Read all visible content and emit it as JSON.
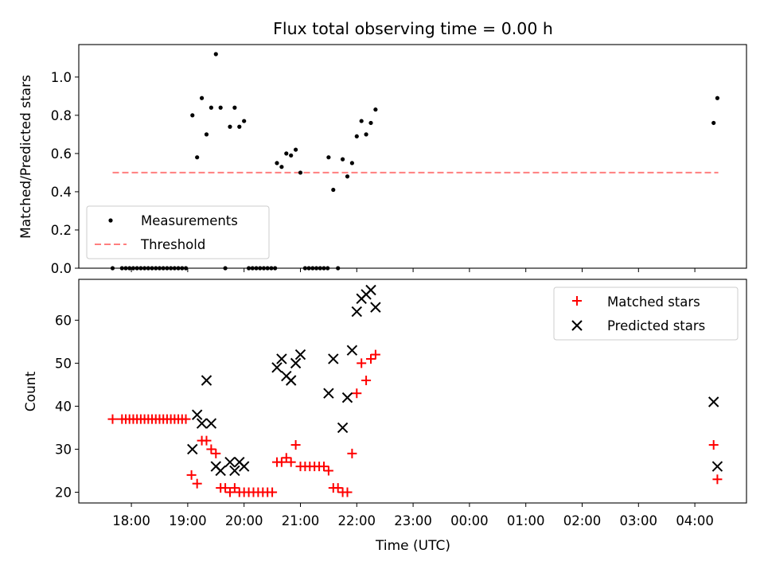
{
  "chart_data": [
    {
      "type": "scatter",
      "title": "Flux total observing time = 0.00 h",
      "ylabel": "Matched/Predicted stars",
      "xlim": [
        "17:04",
        "04:55"
      ],
      "ylim": [
        0,
        1.17
      ],
      "yticks": [
        "0.0",
        "0.2",
        "0.4",
        "0.6",
        "0.8",
        "1.0"
      ],
      "legend_position": "lower-left",
      "series": [
        {
          "name": "Measurements",
          "marker": "dot",
          "color": "#000000",
          "points": [
            [
              "17:40",
              0
            ],
            [
              "17:50",
              0
            ],
            [
              "17:54",
              0
            ],
            [
              "17:58",
              0
            ],
            [
              "18:02",
              0
            ],
            [
              "18:06",
              0
            ],
            [
              "18:10",
              0
            ],
            [
              "18:14",
              0
            ],
            [
              "18:18",
              0
            ],
            [
              "18:22",
              0
            ],
            [
              "18:26",
              0
            ],
            [
              "18:30",
              0
            ],
            [
              "18:34",
              0
            ],
            [
              "18:38",
              0
            ],
            [
              "18:42",
              0
            ],
            [
              "18:46",
              0
            ],
            [
              "18:50",
              0
            ],
            [
              "18:54",
              0
            ],
            [
              "18:58",
              0
            ],
            [
              "19:05",
              0.8
            ],
            [
              "19:10",
              0.58
            ],
            [
              "19:15",
              0.89
            ],
            [
              "19:20",
              0.7
            ],
            [
              "19:25",
              0.84
            ],
            [
              "19:30",
              1.12
            ],
            [
              "19:35",
              0.84
            ],
            [
              "19:40",
              0
            ],
            [
              "19:45",
              0.74
            ],
            [
              "19:50",
              0.84
            ],
            [
              "19:55",
              0.74
            ],
            [
              "20:00",
              0.77
            ],
            [
              "20:05",
              0
            ],
            [
              "20:09",
              0
            ],
            [
              "20:13",
              0
            ],
            [
              "20:17",
              0
            ],
            [
              "20:21",
              0
            ],
            [
              "20:25",
              0
            ],
            [
              "20:29",
              0
            ],
            [
              "20:33",
              0
            ],
            [
              "20:35",
              0.55
            ],
            [
              "20:40",
              0.53
            ],
            [
              "20:45",
              0.6
            ],
            [
              "20:50",
              0.59
            ],
            [
              "20:55",
              0.62
            ],
            [
              "21:00",
              0.5
            ],
            [
              "21:05",
              0
            ],
            [
              "21:09",
              0
            ],
            [
              "21:13",
              0
            ],
            [
              "21:17",
              0
            ],
            [
              "21:21",
              0
            ],
            [
              "21:25",
              0
            ],
            [
              "21:29",
              0
            ],
            [
              "21:30",
              0.58
            ],
            [
              "21:35",
              0.41
            ],
            [
              "21:40",
              0
            ],
            [
              "21:45",
              0.57
            ],
            [
              "21:50",
              0.48
            ],
            [
              "21:55",
              0.55
            ],
            [
              "22:00",
              0.69
            ],
            [
              "22:05",
              0.77
            ],
            [
              "22:10",
              0.7
            ],
            [
              "22:15",
              0.76
            ],
            [
              "22:20",
              0.83
            ],
            [
              "04:20",
              0.76
            ],
            [
              "04:24",
              0.89
            ]
          ]
        },
        {
          "name": "Threshold",
          "style": "dashed",
          "color": "#ff7f7f",
          "points": [
            [
              "17:40",
              0.5
            ],
            [
              "04:25",
              0.5
            ]
          ]
        }
      ]
    },
    {
      "type": "scatter",
      "ylabel": "Count",
      "xlabel": "Time (UTC)",
      "xlim": [
        "17:04",
        "04:55"
      ],
      "ylim": [
        17.5,
        69.5
      ],
      "yticks": [
        "20",
        "30",
        "40",
        "50",
        "60"
      ],
      "xticks": [
        "18:00",
        "19:00",
        "20:00",
        "21:00",
        "22:00",
        "23:00",
        "00:00",
        "01:00",
        "02:00",
        "03:00",
        "04:00"
      ],
      "legend_position": "upper-right",
      "series": [
        {
          "name": "Matched stars",
          "marker": "plus",
          "color": "#ff0000",
          "points": [
            [
              "17:40",
              37
            ],
            [
              "17:50",
              37
            ],
            [
              "17:54",
              37
            ],
            [
              "17:58",
              37
            ],
            [
              "18:02",
              37
            ],
            [
              "18:06",
              37
            ],
            [
              "18:10",
              37
            ],
            [
              "18:14",
              37
            ],
            [
              "18:18",
              37
            ],
            [
              "18:22",
              37
            ],
            [
              "18:26",
              37
            ],
            [
              "18:30",
              37
            ],
            [
              "18:34",
              37
            ],
            [
              "18:38",
              37
            ],
            [
              "18:42",
              37
            ],
            [
              "18:46",
              37
            ],
            [
              "18:50",
              37
            ],
            [
              "18:54",
              37
            ],
            [
              "18:58",
              37
            ],
            [
              "19:04",
              24
            ],
            [
              "19:10",
              22
            ],
            [
              "19:15",
              32
            ],
            [
              "19:20",
              32
            ],
            [
              "19:25",
              30
            ],
            [
              "19:30",
              29
            ],
            [
              "19:35",
              21
            ],
            [
              "19:40",
              21
            ],
            [
              "19:45",
              20
            ],
            [
              "19:50",
              21
            ],
            [
              "19:55",
              20
            ],
            [
              "20:00",
              20
            ],
            [
              "20:05",
              20
            ],
            [
              "20:10",
              20
            ],
            [
              "20:15",
              20
            ],
            [
              "20:20",
              20
            ],
            [
              "20:25",
              20
            ],
            [
              "20:30",
              20
            ],
            [
              "20:35",
              27
            ],
            [
              "20:40",
              27
            ],
            [
              "20:45",
              28
            ],
            [
              "20:50",
              27
            ],
            [
              "20:55",
              31
            ],
            [
              "21:00",
              26
            ],
            [
              "21:05",
              26
            ],
            [
              "21:10",
              26
            ],
            [
              "21:15",
              26
            ],
            [
              "21:20",
              26
            ],
            [
              "21:25",
              26
            ],
            [
              "21:30",
              25
            ],
            [
              "21:35",
              21
            ],
            [
              "21:40",
              21
            ],
            [
              "21:45",
              20
            ],
            [
              "21:50",
              20
            ],
            [
              "21:55",
              29
            ],
            [
              "22:00",
              43
            ],
            [
              "22:05",
              50
            ],
            [
              "22:10",
              46
            ],
            [
              "22:15",
              51
            ],
            [
              "22:20",
              52
            ],
            [
              "04:20",
              31
            ],
            [
              "04:24",
              23
            ]
          ]
        },
        {
          "name": "Predicted stars",
          "marker": "x",
          "color": "#000000",
          "points": [
            [
              "19:05",
              30
            ],
            [
              "19:10",
              38
            ],
            [
              "19:15",
              36
            ],
            [
              "19:20",
              46
            ],
            [
              "19:25",
              36
            ],
            [
              "19:30",
              26
            ],
            [
              "19:35",
              25
            ],
            [
              "19:45",
              27
            ],
            [
              "19:50",
              25
            ],
            [
              "19:55",
              27
            ],
            [
              "20:00",
              26
            ],
            [
              "20:35",
              49
            ],
            [
              "20:40",
              51
            ],
            [
              "20:45",
              47
            ],
            [
              "20:50",
              46
            ],
            [
              "20:55",
              50
            ],
            [
              "21:00",
              52
            ],
            [
              "21:30",
              43
            ],
            [
              "21:35",
              51
            ],
            [
              "21:45",
              35
            ],
            [
              "21:50",
              42
            ],
            [
              "21:55",
              53
            ],
            [
              "22:00",
              62
            ],
            [
              "22:05",
              65
            ],
            [
              "22:10",
              66
            ],
            [
              "22:15",
              67
            ],
            [
              "22:20",
              63
            ],
            [
              "04:20",
              41
            ],
            [
              "04:24",
              26
            ]
          ]
        }
      ]
    }
  ]
}
